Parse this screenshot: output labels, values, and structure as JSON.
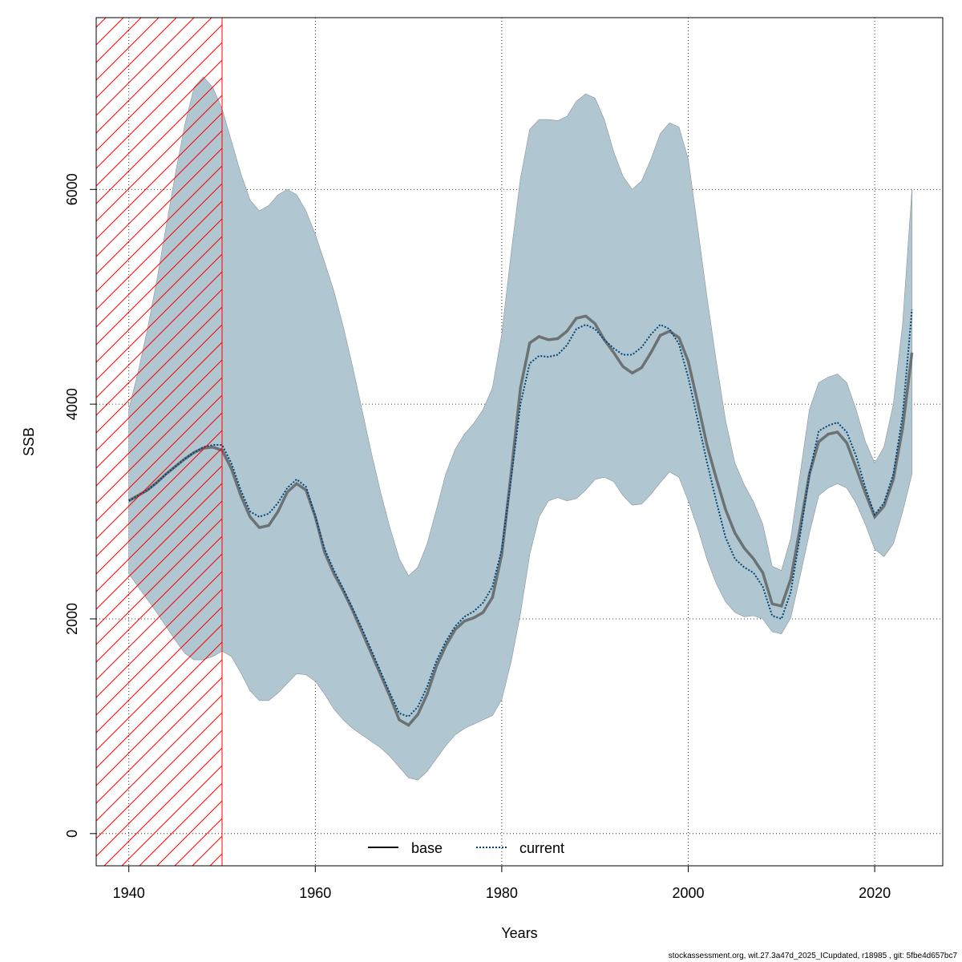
{
  "chart_data": {
    "type": "line",
    "xlabel": "Years",
    "ylabel": "SSB",
    "xlim": [
      1936.5,
      2027.3
    ],
    "ylim": [
      -300,
      7600
    ],
    "x_ticks": [
      1940,
      1960,
      1980,
      2000,
      2020
    ],
    "y_ticks": [
      0,
      2000,
      4000,
      6000
    ],
    "grid": true,
    "legend_position": "bottom-center",
    "shaded_period": {
      "from": 1936.5,
      "to": 1950,
      "style": "red hatched"
    },
    "x": [
      1940,
      1941,
      1942,
      1943,
      1944,
      1945,
      1946,
      1947,
      1948,
      1949,
      1950,
      1951,
      1952,
      1953,
      1954,
      1955,
      1956,
      1957,
      1958,
      1959,
      1960,
      1961,
      1962,
      1963,
      1964,
      1965,
      1966,
      1967,
      1968,
      1969,
      1970,
      1971,
      1972,
      1973,
      1974,
      1975,
      1976,
      1977,
      1978,
      1979,
      1980,
      1981,
      1982,
      1983,
      1984,
      1985,
      1986,
      1987,
      1988,
      1989,
      1990,
      1991,
      1992,
      1993,
      1994,
      1995,
      1996,
      1997,
      1998,
      1999,
      2000,
      2001,
      2002,
      2003,
      2004,
      2005,
      2006,
      2007,
      2008,
      2009,
      2010,
      2011,
      2012,
      2013,
      2014,
      2015,
      2016,
      2017,
      2018,
      2019,
      2020,
      2021,
      2022,
      2023,
      2024
    ],
    "series": [
      {
        "name": "base",
        "color": "#555555",
        "line_style": "solid",
        "values": [
          3100,
          3150,
          3200,
          3270,
          3350,
          3420,
          3490,
          3550,
          3590,
          3600,
          3570,
          3400,
          3150,
          2950,
          2850,
          2870,
          3000,
          3180,
          3260,
          3200,
          2950,
          2620,
          2420,
          2260,
          2080,
          1880,
          1680,
          1480,
          1280,
          1060,
          1010,
          1110,
          1300,
          1560,
          1750,
          1900,
          1980,
          2010,
          2060,
          2200,
          2600,
          3350,
          4150,
          4570,
          4630,
          4600,
          4610,
          4680,
          4800,
          4820,
          4750,
          4600,
          4480,
          4350,
          4290,
          4340,
          4480,
          4640,
          4680,
          4620,
          4400,
          4020,
          3620,
          3310,
          3020,
          2800,
          2660,
          2560,
          2430,
          2140,
          2120,
          2370,
          2850,
          3350,
          3650,
          3720,
          3740,
          3640,
          3410,
          3170,
          2950,
          3050,
          3300,
          3780,
          4480
        ],
        "lower": [
          2420,
          2300,
          2180,
          2060,
          1930,
          1800,
          1680,
          1620,
          1620,
          1650,
          1700,
          1650,
          1500,
          1330,
          1240,
          1240,
          1310,
          1400,
          1490,
          1480,
          1420,
          1300,
          1160,
          1060,
          980,
          920,
          860,
          800,
          720,
          620,
          520,
          500,
          580,
          700,
          820,
          920,
          980,
          1020,
          1060,
          1100,
          1250,
          1600,
          2050,
          2600,
          2950,
          3100,
          3130,
          3100,
          3120,
          3200,
          3300,
          3320,
          3280,
          3150,
          3060,
          3070,
          3160,
          3270,
          3370,
          3320,
          3100,
          2850,
          2560,
          2330,
          2160,
          2060,
          2020,
          2030,
          2000,
          1880,
          1860,
          2010,
          2400,
          2800,
          3150,
          3220,
          3260,
          3220,
          3080,
          2880,
          2650,
          2580,
          2700,
          3000,
          3350
        ],
        "upper": [
          3950,
          4300,
          4700,
          5150,
          5650,
          6150,
          6600,
          6950,
          7050,
          6950,
          6750,
          6450,
          6150,
          5900,
          5800,
          5850,
          5950,
          6000,
          5950,
          5800,
          5580,
          5320,
          5050,
          4720,
          4350,
          3950,
          3550,
          3180,
          2850,
          2560,
          2400,
          2480,
          2700,
          3020,
          3350,
          3580,
          3720,
          3820,
          3950,
          4150,
          4650,
          5400,
          6100,
          6560,
          6650,
          6650,
          6640,
          6680,
          6820,
          6890,
          6850,
          6650,
          6350,
          6120,
          6000,
          6080,
          6280,
          6520,
          6620,
          6580,
          6280,
          5650,
          5000,
          4400,
          3850,
          3450,
          3250,
          3090,
          2880,
          2490,
          2450,
          2750,
          3350,
          3950,
          4200,
          4250,
          4280,
          4200,
          3950,
          3650,
          3450,
          3600,
          4000,
          4750,
          6000
        ]
      },
      {
        "name": "current",
        "color": "#00457a",
        "line_style": "dotted",
        "values": [
          3100,
          3150,
          3200,
          3270,
          3350,
          3420,
          3490,
          3550,
          3600,
          3620,
          3620,
          3450,
          3200,
          3000,
          2950,
          2980,
          3080,
          3220,
          3300,
          3230,
          2960,
          2650,
          2450,
          2280,
          2100,
          1910,
          1710,
          1510,
          1310,
          1120,
          1090,
          1180,
          1370,
          1610,
          1790,
          1930,
          2020,
          2070,
          2150,
          2300,
          2650,
          3300,
          4000,
          4380,
          4450,
          4440,
          4460,
          4550,
          4700,
          4740,
          4700,
          4600,
          4520,
          4460,
          4460,
          4530,
          4650,
          4740,
          4700,
          4560,
          4250,
          3860,
          3460,
          3100,
          2760,
          2560,
          2480,
          2430,
          2300,
          2030,
          2000,
          2250,
          2780,
          3350,
          3750,
          3800,
          3830,
          3740,
          3520,
          3220,
          2970,
          3080,
          3350,
          3900,
          4880
        ],
        "lower": [
          2420,
          2300,
          2180,
          2060,
          1930,
          1800,
          1680,
          1620,
          1620,
          1650,
          1700,
          1650,
          1500,
          1330,
          1240,
          1240,
          1310,
          1400,
          1490,
          1480,
          1420,
          1300,
          1160,
          1060,
          980,
          920,
          860,
          800,
          720,
          620,
          520,
          500,
          580,
          700,
          820,
          920,
          980,
          1020,
          1060,
          1100,
          1250,
          1600,
          2050,
          2600,
          2950,
          3100,
          3130,
          3100,
          3120,
          3200,
          3300,
          3320,
          3280,
          3150,
          3060,
          3070,
          3160,
          3270,
          3370,
          3320,
          3100,
          2850,
          2560,
          2330,
          2160,
          2060,
          2020,
          2030,
          2000,
          1880,
          1860,
          2010,
          2400,
          2800,
          3150,
          3220,
          3260,
          3220,
          3080,
          2880,
          2650,
          2580,
          2700,
          3000,
          3350
        ],
        "upper": [
          3950,
          4300,
          4700,
          5150,
          5650,
          6150,
          6600,
          6950,
          7050,
          6950,
          6750,
          6450,
          6150,
          5900,
          5800,
          5850,
          5950,
          6000,
          5950,
          5800,
          5580,
          5320,
          5050,
          4720,
          4350,
          3950,
          3550,
          3180,
          2850,
          2560,
          2400,
          2480,
          2700,
          3020,
          3350,
          3580,
          3720,
          3820,
          3950,
          4150,
          4650,
          5400,
          6100,
          6560,
          6650,
          6650,
          6640,
          6680,
          6820,
          6890,
          6850,
          6650,
          6350,
          6120,
          6000,
          6080,
          6280,
          6520,
          6620,
          6580,
          6280,
          5650,
          5000,
          4400,
          3850,
          3450,
          3250,
          3090,
          2880,
          2490,
          2450,
          2750,
          3350,
          3950,
          4200,
          4250,
          4280,
          4200,
          3950,
          3650,
          3450,
          3600,
          4000,
          4750,
          6000
        ]
      }
    ],
    "band_colors": {
      "base": "#bebebe",
      "current": "#bde3f5"
    },
    "band_overlap_color": "#a5c4d3"
  },
  "footer": "stockassessment.org, wit.27.3a47d_2025_ICupdated, r18985 , git: 5fbe4d657bc7"
}
